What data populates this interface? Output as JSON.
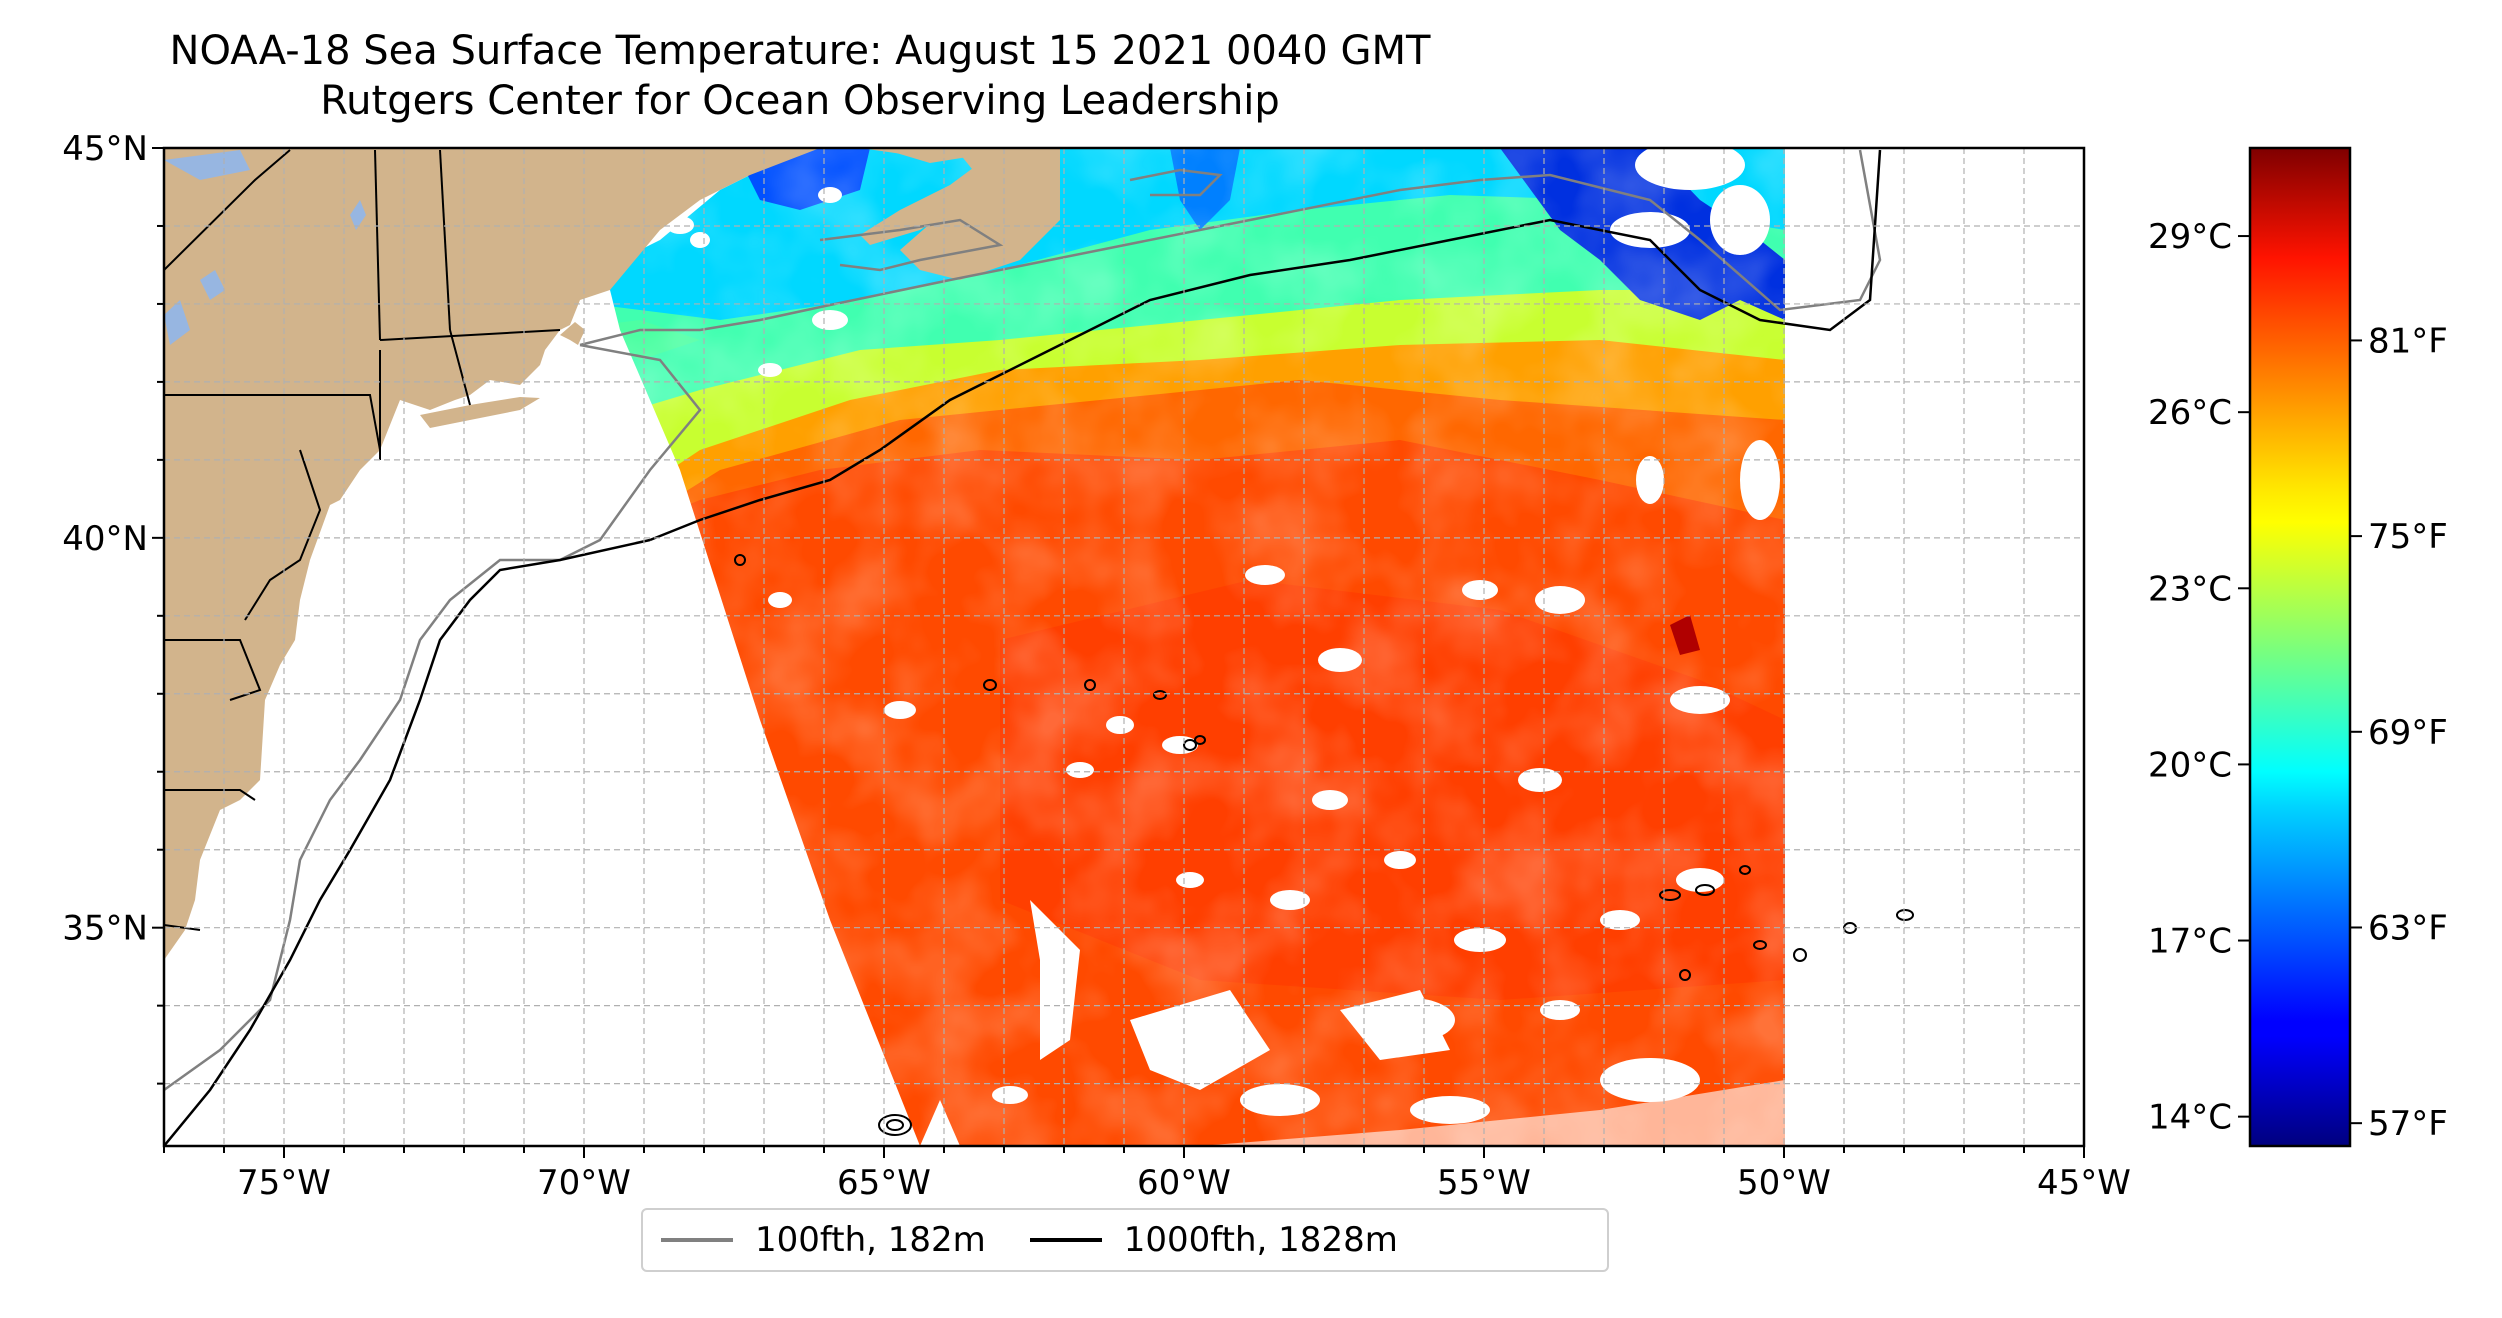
{
  "title": {
    "line1": "NOAA-18 Sea Surface Temperature: August 15 2021 0040 GMT",
    "line2": "Rutgers Center for Ocean Observing Leadership"
  },
  "map": {
    "extent": {
      "lon_min": -77,
      "lon_max": -45,
      "lat_min": 32.2,
      "lat_max": 45
    },
    "lon_ticks": [
      -75,
      -70,
      -65,
      -60,
      -55,
      -50,
      -45
    ],
    "lon_tick_labels": [
      "75°W",
      "70°W",
      "65°W",
      "60°W",
      "55°W",
      "50°W",
      "45°W"
    ],
    "lat_ticks": [
      35,
      40,
      45
    ],
    "lat_tick_labels": [
      "35°N",
      "40°N",
      "45°N"
    ],
    "gridlines": true,
    "colors": {
      "land": "#d2b48c",
      "lakes": "#97b6e1",
      "isobath_100fth": "#808080",
      "isobath_1000fth": "#000000",
      "grid": "#b0b0b0"
    }
  },
  "legend": {
    "items": [
      {
        "label": "100fth, 182m",
        "color": "#808080"
      },
      {
        "label": "1000fth, 1828m",
        "color": "#000000"
      }
    ]
  },
  "colorbar": {
    "colormap": "jet",
    "celsius_ticks": [
      29,
      26,
      23,
      20,
      17,
      14
    ],
    "celsius_labels": [
      "29°C",
      "26°C",
      "23°C",
      "20°C",
      "17°C",
      "14°C"
    ],
    "fahrenheit_ticks": [
      81,
      75,
      69,
      63,
      57
    ],
    "fahrenheit_labels": [
      "81°F",
      "75°F",
      "69°F",
      "63°F",
      "57°F"
    ],
    "range_celsius": [
      13.5,
      30.5
    ]
  }
}
